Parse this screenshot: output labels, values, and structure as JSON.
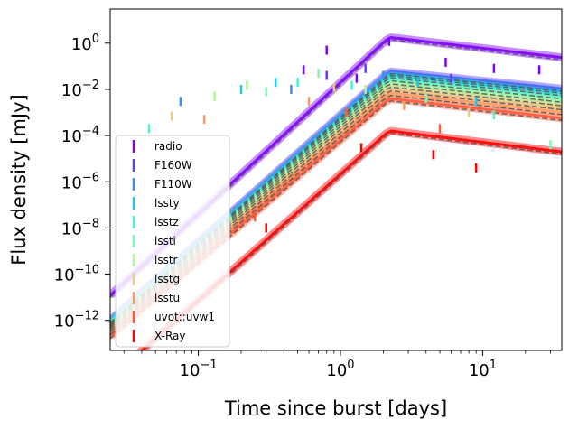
{
  "chart_data": {
    "type": "line",
    "xlabel": "Time since burst [days]",
    "ylabel": "Flux density [mJy]",
    "x_scale": "log",
    "y_scale": "log",
    "xlim": [
      0.024,
      36
    ],
    "ylim": [
      5e-14,
      30
    ],
    "x_ticks": [
      {
        "value": 0.1,
        "base": "10",
        "exp": "−1"
      },
      {
        "value": 1,
        "base": "10",
        "exp": "0"
      },
      {
        "value": 10,
        "base": "10",
        "exp": "1"
      }
    ],
    "y_ticks": [
      {
        "value": 1,
        "base": "10",
        "exp": "0"
      },
      {
        "value": 0.01,
        "base": "10",
        "exp": "−2"
      },
      {
        "value": 0.0001,
        "base": "10",
        "exp": "−4"
      },
      {
        "value": 1e-06,
        "base": "10",
        "exp": "−6"
      },
      {
        "value": 1e-08,
        "base": "10",
        "exp": "−8"
      },
      {
        "value": 1e-10,
        "base": "10",
        "exp": "−10"
      },
      {
        "value": 1e-12,
        "base": "10",
        "exp": "−12"
      }
    ],
    "grid": false,
    "legend_position": "lower-left",
    "series": [
      {
        "name": "radio",
        "color": "#7f00ff",
        "peak": 1.8,
        "base": 1.2e-11,
        "decay": 0.72,
        "tail": 0.07,
        "observations": [
          [
            0.55,
            0.07
          ],
          [
            0.8,
            0.5
          ],
          [
            1.3,
            0.03
          ],
          [
            2.2,
            1.2
          ],
          [
            5.5,
            0.15
          ],
          [
            12.0,
            0.08
          ],
          [
            25.0,
            0.07
          ]
        ]
      },
      {
        "name": "F160W",
        "color": "#5f3df9",
        "peak": 0.06,
        "base": 1e-12,
        "decay": 0.62,
        "tail": 0.0004,
        "observations": [
          [
            0.8,
            0.04
          ],
          [
            1.5,
            0.08
          ],
          [
            6.0,
            0.03
          ]
        ]
      },
      {
        "name": "F110W",
        "color": "#3a8fef",
        "peak": 0.05,
        "base": 9e-13,
        "decay": 0.63,
        "tail": 0.00035,
        "observations": [
          [
            0.075,
            0.003
          ],
          [
            0.45,
            0.01
          ],
          [
            2.0,
            0.04
          ]
        ]
      },
      {
        "name": "lssty",
        "color": "#22c6e4",
        "peak": 0.04,
        "base": 8e-13,
        "decay": 0.64,
        "tail": 0.0003,
        "observations": [
          [
            0.2,
            0.01
          ],
          [
            0.35,
            0.02
          ],
          [
            3.5,
            0.02
          ],
          [
            9.0,
            0.003
          ]
        ]
      },
      {
        "name": "lsstz",
        "color": "#4af0d0",
        "peak": 0.03,
        "base": 7e-13,
        "decay": 0.65,
        "tail": 0.00025,
        "observations": [
          [
            0.045,
            0.0002
          ],
          [
            0.5,
            0.02
          ],
          [
            1.2,
            0.015
          ],
          [
            12.0,
            0.0008
          ]
        ]
      },
      {
        "name": "lssti",
        "color": "#7ef7b6",
        "peak": 0.022,
        "base": 6e-13,
        "decay": 0.66,
        "tail": 0.0002,
        "observations": [
          [
            0.3,
            0.008
          ],
          [
            0.7,
            0.05
          ],
          [
            4.0,
            0.004
          ],
          [
            30.0,
            4e-05
          ]
        ]
      },
      {
        "name": "lsstr",
        "color": "#b6f29a",
        "peak": 0.016,
        "base": 5e-13,
        "decay": 0.67,
        "tail": 0.00015,
        "observations": [
          [
            0.13,
            0.005
          ],
          [
            0.22,
            0.015
          ],
          [
            1.5,
            0.01
          ]
        ]
      },
      {
        "name": "lsstg",
        "color": "#e5cc85",
        "peak": 0.011,
        "base": 4e-13,
        "decay": 0.68,
        "tail": 0.0001,
        "observations": [
          [
            0.065,
            0.0007
          ],
          [
            0.9,
            0.012
          ],
          [
            8.0,
            0.001
          ]
        ]
      },
      {
        "name": "lsstu",
        "color": "#ff9b62",
        "peak": 0.007,
        "base": 3e-13,
        "decay": 0.69,
        "tail": 7e-05,
        "observations": [
          [
            0.11,
            0.0005
          ],
          [
            0.6,
            0.003
          ],
          [
            2.8,
            0.002
          ]
        ]
      },
      {
        "name": "uvot::uvw1",
        "color": "#ff5a38",
        "peak": 0.004,
        "base": 2e-13,
        "decay": 0.7,
        "tail": 4e-05,
        "observations": [
          [
            0.25,
            3e-08
          ],
          [
            1.1,
            0.001
          ],
          [
            5.0,
            0.0002
          ]
        ]
      },
      {
        "name": "X-Ray",
        "color": "#ff0000",
        "peak": 0.00016,
        "base": 3e-15,
        "decay": 0.75,
        "tail": 9e-10,
        "observations": [
          [
            0.3,
            1e-08
          ],
          [
            1.4,
            3e-05
          ],
          [
            4.5,
            1.5e-05
          ],
          [
            9.0,
            4e-06
          ]
        ]
      }
    ],
    "model_line_color": "#555555",
    "model_peak_time": 2.2
  }
}
